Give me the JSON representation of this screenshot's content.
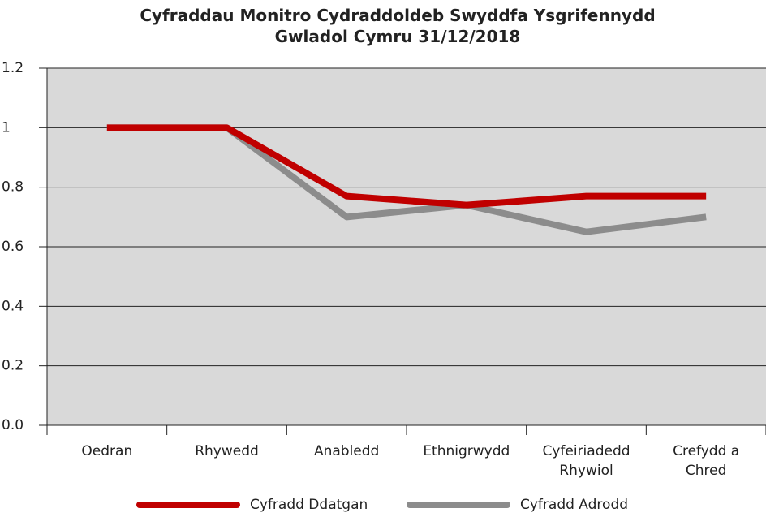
{
  "chart_data": {
    "type": "line",
    "title": "Cyfraddau Monitro Cydraddoldeb Swyddfa Ysgrifennydd\nGwladol Cymru 31/12/2018",
    "categories": [
      "Oedran",
      "Rhywedd",
      "Anabledd",
      "Ethnigrwydd",
      "Cyfeiriadedd\nRhywiol",
      "Crefydd a\nChred"
    ],
    "series": [
      {
        "name": "Cyfradd Ddatgan",
        "color": "#c00000",
        "values": [
          1,
          1,
          0.77,
          0.74,
          0.77,
          0.77
        ]
      },
      {
        "name": "Cyfradd Adrodd",
        "color": "#8c8c8c",
        "values": [
          1,
          1,
          0.7,
          0.74,
          0.65,
          0.7
        ]
      }
    ],
    "ylim": [
      0,
      1.2
    ],
    "yticks": [
      {
        "value": 0,
        "label": "0.0"
      },
      0.2,
      0.4,
      0.6,
      0.8,
      1,
      1.2
    ],
    "grid": true,
    "legend": "bottom"
  }
}
